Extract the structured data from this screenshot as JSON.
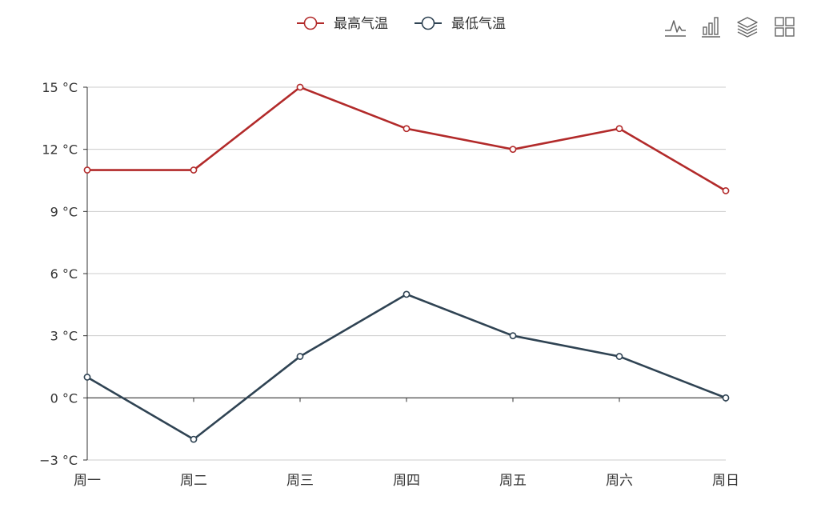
{
  "legend": [
    {
      "label": "最高气温",
      "color": "#b22a2a"
    },
    {
      "label": "最低气温",
      "color": "#2f4353"
    }
  ],
  "toolbox": [
    {
      "name": "line-chart-icon"
    },
    {
      "name": "bar-chart-icon"
    },
    {
      "name": "stack-icon"
    },
    {
      "name": "tiled-icon"
    }
  ],
  "chart_data": {
    "type": "line",
    "categories": [
      "周一",
      "周二",
      "周三",
      "周四",
      "周五",
      "周六",
      "周日"
    ],
    "series": [
      {
        "name": "最高气温",
        "values": [
          11,
          11,
          15,
          13,
          12,
          13,
          10
        ],
        "color": "#b22a2a"
      },
      {
        "name": "最低气温",
        "values": [
          1,
          -2,
          2,
          5,
          3,
          2,
          0
        ],
        "color": "#2f4353"
      }
    ],
    "yticks": [
      "15 °C",
      "12 °C",
      "9 °C",
      "6 °C",
      "3 °C",
      "0 °C",
      "−3 °C"
    ],
    "ytick_values": [
      15,
      12,
      9,
      6,
      3,
      0,
      -3
    ],
    "ylim": [
      -3,
      15
    ],
    "grid": true,
    "legend_position": "top-center"
  }
}
